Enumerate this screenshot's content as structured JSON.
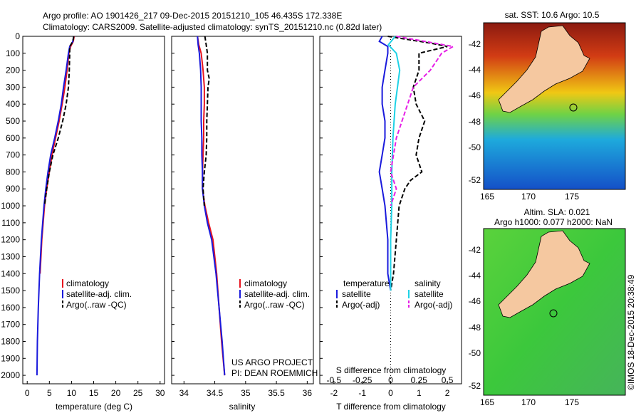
{
  "header": {
    "line1": "Argo profile: AO 1901426_217 09-Dec-2015 20151210_105 46.435S 172.338E",
    "line2": "Climatology: CARS2009. Satellite-adjusted climatology: synTS_20151210.nc (0.82d later)"
  },
  "colors": {
    "climatology": "#e8141e",
    "satellite": "#1a1adc",
    "argo": "#000000",
    "satellite_s": "#1ed2e6",
    "argo_s": "#e61ee6"
  },
  "credits": {
    "line1": "US ARGO PROJECT",
    "line2": "PI: DEAN ROEMMICH"
  },
  "watermark": "©IMOS 18-Dec-2015 20:38:49",
  "chart_data": [
    {
      "type": "line",
      "id": "temperature",
      "xlabel": "temperature (deg C)",
      "ylabel": "",
      "xlim": [
        -1,
        31
      ],
      "ylim": [
        2050,
        0
      ],
      "xticks": [
        0,
        5,
        10,
        15,
        20,
        25,
        30
      ],
      "yticks": [
        0,
        100,
        200,
        300,
        400,
        500,
        600,
        700,
        800,
        900,
        1000,
        1100,
        1200,
        1300,
        1400,
        1500,
        1600,
        1700,
        1800,
        1900,
        2000
      ],
      "legend": [
        "climatology",
        "satellite-adj. clim.",
        "Argo(..raw -QC)"
      ],
      "series": [
        {
          "name": "climatology",
          "y": [
            0,
            30,
            60,
            100,
            200,
            300,
            400,
            500,
            600,
            700,
            800,
            900,
            1000,
            1200,
            1400
          ],
          "x": [
            10.6,
            10.4,
            9.8,
            9.4,
            9.0,
            8.5,
            7.9,
            7.2,
            6.4,
            5.6,
            5.0,
            4.4,
            3.9,
            3.3,
            2.9
          ]
        },
        {
          "name": "satellite-adj. clim.",
          "y": [
            0,
            30,
            60,
            100,
            200,
            300,
            400,
            500,
            600,
            700,
            800,
            900,
            1000,
            1200,
            1400,
            1600,
            1800,
            2000
          ],
          "x": [
            10.5,
            10.3,
            9.6,
            9.3,
            8.8,
            8.2,
            7.7,
            7.0,
            6.2,
            5.3,
            4.7,
            4.2,
            3.8,
            3.2,
            2.8,
            2.5,
            2.3,
            2.2
          ]
        },
        {
          "name": "Argo(..raw -QC)",
          "y": [
            0,
            30,
            60,
            100,
            200,
            300,
            400,
            500,
            600,
            700,
            800,
            900,
            1000
          ],
          "x": [
            10.5,
            10.3,
            9.6,
            9.6,
            9.5,
            9.3,
            8.8,
            8.0,
            7.0,
            5.8,
            5.0,
            4.4,
            3.9
          ]
        }
      ]
    },
    {
      "type": "line",
      "id": "salinity",
      "xlabel": "salinity",
      "ylabel": "",
      "xlim": [
        33.8,
        36.1
      ],
      "ylim": [
        2050,
        0
      ],
      "xticks": [
        34,
        34.5,
        35,
        35.5,
        36
      ],
      "legend": [
        "climatology",
        "satellite-adj. clim.",
        "Argo(..raw -QC)"
      ],
      "series": [
        {
          "name": "climatology",
          "y": [
            0,
            50,
            100,
            200,
            300,
            400,
            500,
            600,
            700,
            800,
            900,
            1000,
            1100,
            1200,
            1400,
            1600,
            1800,
            2000
          ],
          "x": [
            34.22,
            34.24,
            34.28,
            34.31,
            34.33,
            34.33,
            34.32,
            34.32,
            34.31,
            34.3,
            34.3,
            34.34,
            34.4,
            34.47,
            34.53,
            34.57,
            34.61,
            34.66
          ]
        },
        {
          "name": "satellite-adj. clim.",
          "y": [
            0,
            50,
            100,
            200,
            300,
            400,
            500,
            600,
            700,
            800,
            900,
            1000,
            1100,
            1200,
            1400,
            1600,
            1800,
            2000
          ],
          "x": [
            34.22,
            34.23,
            34.25,
            34.27,
            34.28,
            34.28,
            34.28,
            34.29,
            34.29,
            34.3,
            34.3,
            34.33,
            34.38,
            34.45,
            34.52,
            34.57,
            34.62,
            34.66
          ]
        },
        {
          "name": "Argo(..raw -QC)",
          "y": [
            0,
            50,
            100,
            200,
            250,
            300,
            400,
            500,
            600,
            700,
            800,
            900,
            1000
          ],
          "x": [
            34.34,
            34.36,
            34.38,
            34.38,
            34.41,
            34.39,
            34.38,
            34.37,
            34.37,
            34.36,
            34.33,
            34.31,
            34.33
          ]
        }
      ]
    },
    {
      "type": "line",
      "id": "differences",
      "xlabel": "T difference from climatology",
      "xlabel2": "S difference from climatology",
      "xlim": [
        -2.5,
        2.5
      ],
      "ylim": [
        2050,
        0
      ],
      "xticks": [
        -2,
        -1,
        0,
        1,
        2
      ],
      "xticks_top": [
        "-0.5",
        "-0.25",
        "0",
        "0.25",
        "0.5"
      ],
      "legend_temperature": [
        "temperature",
        "satellite",
        "Argo(-adj)"
      ],
      "legend_salinity": [
        "salinity",
        "satellite",
        "Argo(-adj)"
      ],
      "series": [
        {
          "name": "temperature satellite",
          "y": [
            0,
            30,
            60,
            100,
            200,
            300,
            400,
            500,
            600,
            700,
            800,
            900,
            1000,
            1200,
            1400,
            1500
          ],
          "x": [
            -0.3,
            -0.4,
            -0.1,
            -0.1,
            -0.2,
            -0.3,
            -0.3,
            -0.2,
            -0.2,
            -0.3,
            -0.4,
            -0.3,
            -0.2,
            -0.1,
            -0.1,
            0.0
          ]
        },
        {
          "name": "temperature Argo(-adj)",
          "y": [
            0,
            40,
            60,
            100,
            200,
            300,
            400,
            500,
            600,
            700,
            800,
            850,
            900,
            1000,
            1200,
            1400,
            1500
          ],
          "x": [
            -0.1,
            1.4,
            2.0,
            1.0,
            1.0,
            0.8,
            0.9,
            1.2,
            1.0,
            0.9,
            1.1,
            0.7,
            0.5,
            0.3,
            0.2,
            0.1,
            0.0
          ]
        },
        {
          "name": "salinity satellite",
          "y": [
            0,
            50,
            100,
            200,
            300,
            400,
            500,
            600,
            800,
            1000,
            1200,
            1400,
            1500
          ],
          "x": [
            0.04,
            -0.02,
            0.05,
            0.08,
            0.06,
            0.04,
            0.03,
            0.02,
            0.01,
            0.01,
            0.0,
            0.0,
            0.0
          ]
        },
        {
          "name": "salinity Argo(-adj)",
          "y": [
            0,
            30,
            60,
            100,
            200,
            300,
            400,
            500,
            600,
            800,
            900,
            1000
          ],
          "x": [
            0.05,
            0.3,
            0.55,
            0.45,
            0.35,
            0.2,
            0.15,
            0.1,
            0.05,
            0.0,
            0.05,
            0.0
          ]
        }
      ]
    }
  ],
  "maps": {
    "sst": {
      "title": "sat. SST: 10.6 Argo: 10.5",
      "xticks": [
        "165",
        "170",
        "175"
      ],
      "yticks": [
        "-42",
        "-44",
        "-46",
        "-48",
        "-50",
        "-52"
      ]
    },
    "sla": {
      "title1": "Altim. SLA: 0.021",
      "title2": "Argo h1000: 0.077 h2000: NaN",
      "xticks": [
        "165",
        "170",
        "175"
      ],
      "yticks": [
        "-42",
        "-44",
        "-46",
        "-48",
        "-50",
        "-52"
      ]
    }
  }
}
